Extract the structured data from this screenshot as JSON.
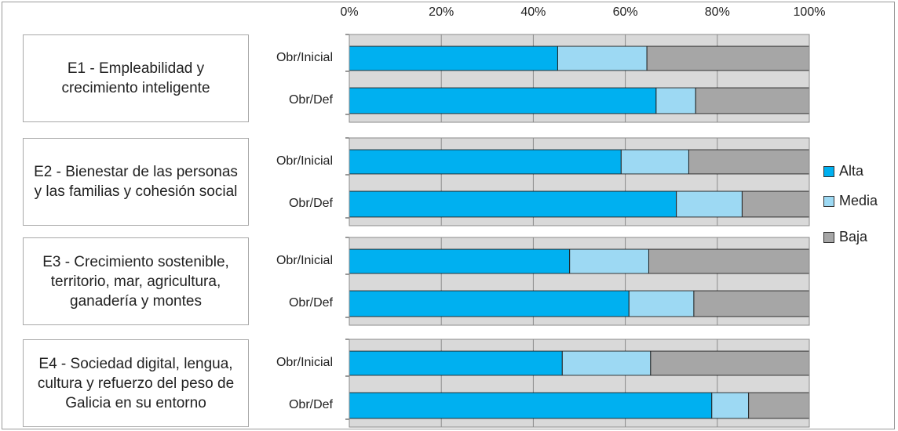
{
  "chart_data": {
    "type": "bar",
    "orientation": "horizontal",
    "stacked": true,
    "percent": true,
    "x_ticks": [
      "0%",
      "20%",
      "40%",
      "60%",
      "80%",
      "100%"
    ],
    "xlim": [
      0,
      100
    ],
    "grid": true,
    "legend_position": "right",
    "colors": {
      "Alta": "#00b0f0",
      "Media": "#9dd9f3",
      "Baja": "#a6a6a6"
    },
    "legend": [
      "Alta",
      "Media",
      "Baja"
    ],
    "groups": [
      {
        "label": "E1 - Empleabilidad y crecimiento inteligente",
        "bars": [
          {
            "label": "Obr/Inicial",
            "Alta": 45.3,
            "Media": 19.4,
            "Baja": 35.3
          },
          {
            "label": "Obr/Def",
            "Alta": 66.7,
            "Media": 8.6,
            "Baja": 24.7
          }
        ]
      },
      {
        "label": "E2 - Bienestar de las personas y las familias y cohesión social",
        "bars": [
          {
            "label": "Obr/Inicial",
            "Alta": 59.1,
            "Media": 14.7,
            "Baja": 26.2
          },
          {
            "label": "Obr/Def",
            "Alta": 71.1,
            "Media": 14.3,
            "Baja": 14.6
          }
        ]
      },
      {
        "label": "E3 - Crecimiento sostenible, territorio, mar, agricultura, ganadería y montes",
        "bars": [
          {
            "label": "Obr/Inicial",
            "Alta": 47.9,
            "Media": 17.2,
            "Baja": 34.9
          },
          {
            "label": "Obr/Def",
            "Alta": 60.8,
            "Media": 14.1,
            "Baja": 25.1
          }
        ]
      },
      {
        "label": "E4 - Sociedad digital, lengua, cultura y refuerzo del peso de Galicia en su entorno",
        "bars": [
          {
            "label": "Obr/Inicial",
            "Alta": 46.3,
            "Media": 19.2,
            "Baja": 34.5
          },
          {
            "label": "Obr/Def",
            "Alta": 78.8,
            "Media": 8.0,
            "Baja": 13.2
          }
        ]
      }
    ]
  }
}
